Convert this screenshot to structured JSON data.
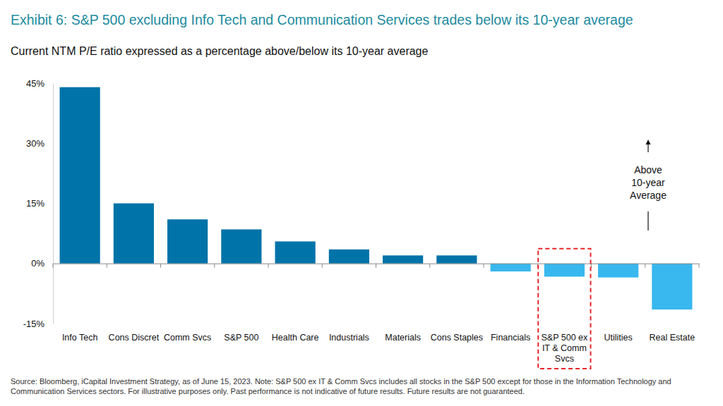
{
  "chart_data": {
    "type": "bar",
    "title": "Exhibit 6: S&P 500 excluding Info Tech and Communication Services trades below its 10-year average",
    "subtitle": "Current NTM P/E ratio expressed as a percentage above/below its 10-year average",
    "categories": [
      "Info Tech",
      "Cons Discret",
      "Comm Svcs",
      "S&P 500",
      "Health Care",
      "Industrials",
      "Materials",
      "Cons Staples",
      "Financials",
      "S&P 500 ex IT & Comm Svcs",
      "Utilities",
      "Real Estate"
    ],
    "values": [
      44,
      15,
      11,
      8.5,
      5.5,
      3.5,
      2,
      2,
      -2,
      -3.3,
      -3.5,
      -11.5
    ],
    "colors": [
      "#0073a8",
      "#0073a8",
      "#0073a8",
      "#0073a8",
      "#0073a8",
      "#0073a8",
      "#0073a8",
      "#0073a8",
      "#38b8ee",
      "#38b8ee",
      "#38b8ee",
      "#38b8ee"
    ],
    "ylim": [
      -15,
      45
    ],
    "yticks": [
      {
        "value": -15,
        "label": "-15%"
      },
      {
        "value": 0,
        "label": "0%"
      },
      {
        "value": 15,
        "label": "15%"
      },
      {
        "value": 30,
        "label": "30%"
      },
      {
        "value": 45,
        "label": "45%"
      }
    ],
    "grid": false,
    "annotations": [
      "Above 10-year Average"
    ],
    "note": "Source: Bloomberg, iCapital Investment Strategy, as of June 15, 2023. Note: S&P 500 ex IT & Comm Svcs includes all stocks in the S&P 500 except for those in the Information Technology and Communication Services sectors. For illustrative purposes only. Past performance is not indicative of future results. Future results are not guaranteed."
  }
}
